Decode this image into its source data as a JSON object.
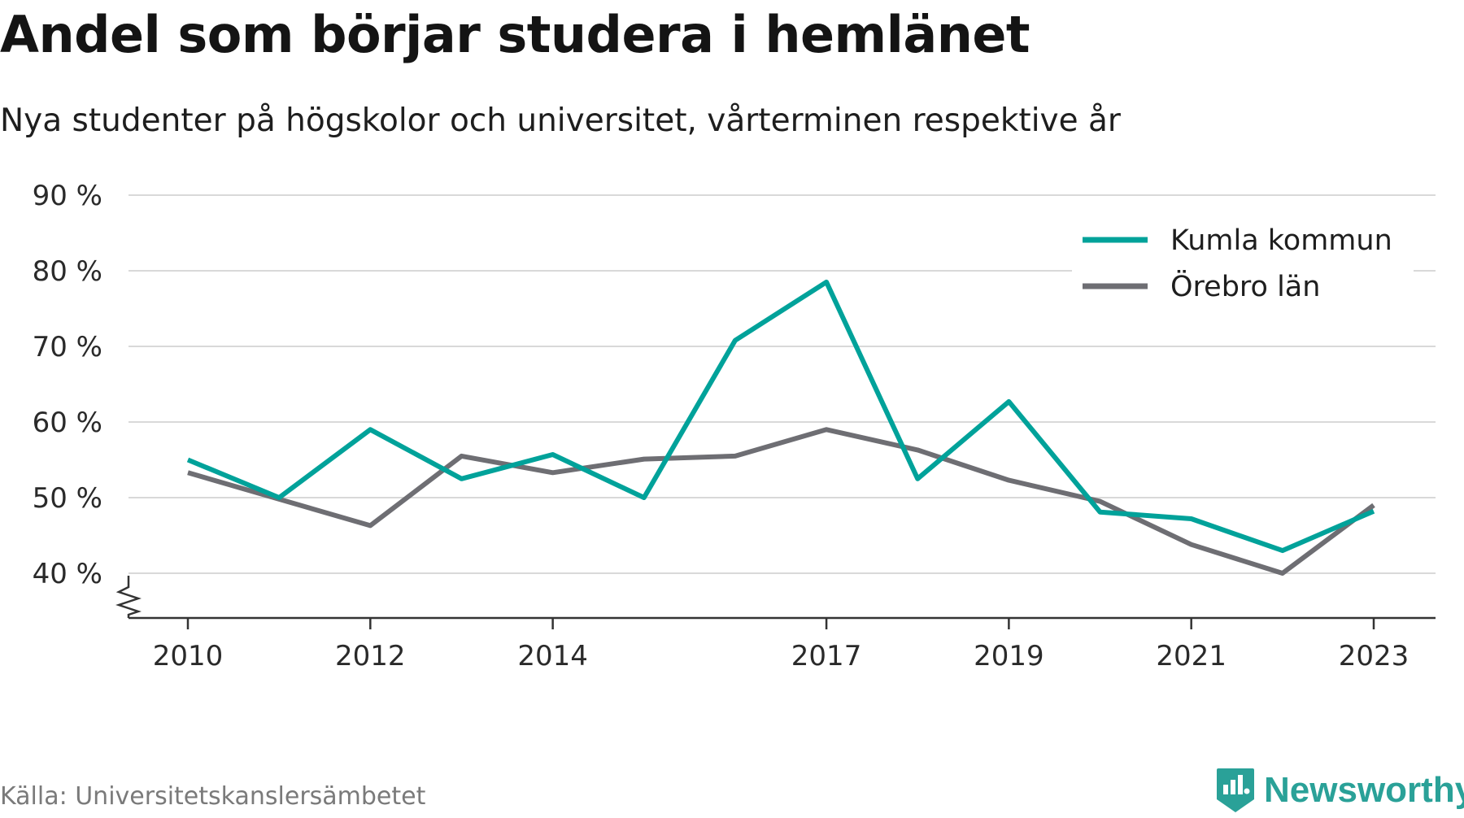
{
  "title": "Andel som börjar studera i hemlänet",
  "subtitle": "Nya studenter på högskolor och universitet, vårterminen respektive år",
  "source": "Källa: Universitetskanslersämbetet",
  "brand": {
    "name": "Newsworthy",
    "icon": "newsworthy-logo-icon",
    "color": "#2aa198"
  },
  "chart_data": {
    "type": "line",
    "x": [
      2010,
      2011,
      2012,
      2013,
      2014,
      2015,
      2016,
      2017,
      2018,
      2019,
      2020,
      2021,
      2022,
      2023
    ],
    "x_ticks": [
      2010,
      2012,
      2014,
      2017,
      2019,
      2021,
      2023
    ],
    "y_ticks": [
      40,
      50,
      60,
      70,
      80,
      90
    ],
    "y_tick_suffix": " %",
    "ylim": [
      34,
      90
    ],
    "y_axis_break": true,
    "grid": true,
    "legend_position": "top-right",
    "series": [
      {
        "name": "Kumla kommun",
        "color": "#00a29a",
        "values": [
          55,
          50,
          59,
          52.5,
          55.7,
          50,
          70.8,
          78.5,
          52.5,
          62.7,
          48.1,
          47.2,
          43,
          48.2
        ]
      },
      {
        "name": "Örebro län",
        "color": "#6e6e73",
        "values": [
          53.3,
          49.8,
          46.3,
          55.5,
          53.3,
          55.1,
          55.5,
          59,
          56.3,
          52.3,
          49.5,
          43.8,
          40,
          49
        ]
      }
    ]
  }
}
